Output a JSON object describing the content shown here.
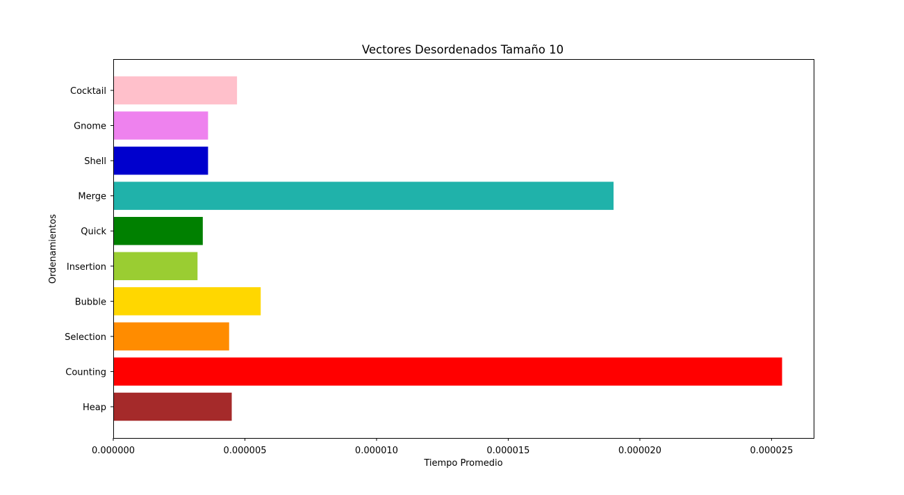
{
  "chart_data": {
    "type": "bar",
    "orientation": "horizontal",
    "title": "Vectores Desordenados Tamaño 10",
    "xlabel": "Tiempo Promedio",
    "ylabel": "Ordenamientos",
    "xlim": [
      0,
      2.66e-05
    ],
    "x_ticks": [
      0,
      5e-06,
      1e-05,
      1.5e-05,
      2e-05,
      2.5e-05
    ],
    "x_tick_labels": [
      "0.000000",
      "0.000005",
      "0.000010",
      "0.000015",
      "0.000020",
      "0.000025"
    ],
    "grid": false,
    "legend": "none",
    "categories": [
      "Heap",
      "Counting",
      "Selection",
      "Bubble",
      "Insertion",
      "Quick",
      "Merge",
      "Shell",
      "Gnome",
      "Cocktail"
    ],
    "values": [
      4.5e-06,
      2.54e-05,
      4.4e-06,
      5.6e-06,
      3.2e-06,
      3.4e-06,
      1.9e-05,
      3.6e-06,
      3.6e-06,
      4.7e-06
    ],
    "colors": [
      "#a52a2a",
      "#ff0000",
      "#ff8c00",
      "#ffd700",
      "#9acd32",
      "#008000",
      "#20b2aa",
      "#0000cd",
      "#ee82ee",
      "#ffc0cb"
    ]
  }
}
